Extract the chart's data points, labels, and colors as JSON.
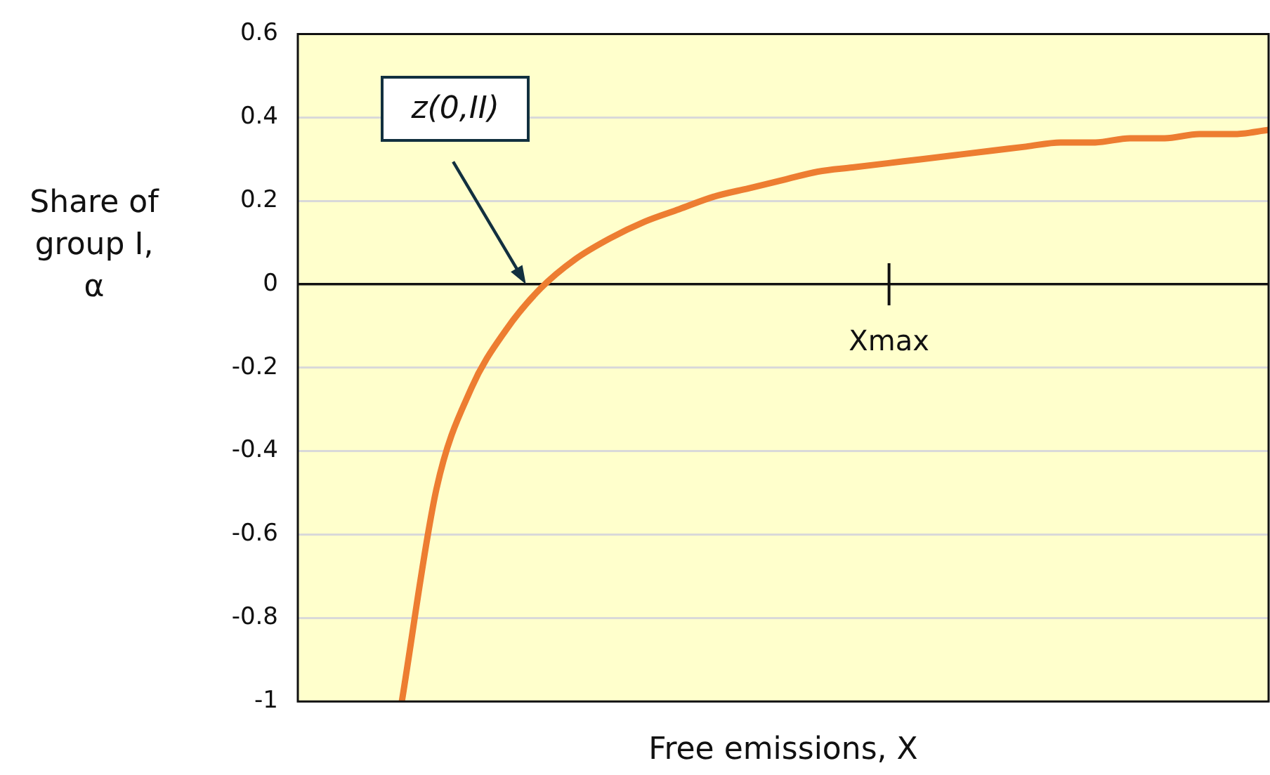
{
  "chart_data": {
    "type": "line",
    "xlabel": "Free emissions, X",
    "ylabel": "Share of group I, α",
    "categories": [
      null,
      null,
      null,
      null,
      null,
      null,
      null,
      null,
      null,
      null,
      null,
      null,
      null,
      null,
      null,
      null,
      null,
      null,
      null,
      null,
      null,
      null,
      null,
      null,
      null,
      null,
      null,
      null,
      null
    ],
    "series": [
      {
        "color": "#ed7d31",
        "values": [
          null,
          null,
          null,
          -1,
          -0.49,
          -0.25,
          -0.11,
          -0.01,
          0.06,
          0.11,
          0.15,
          0.18,
          0.21,
          0.23,
          0.25,
          0.27,
          0.28,
          0.29,
          0.3,
          0.31,
          0.32,
          0.33,
          0.34,
          0.34,
          0.35,
          0.35,
          0.36,
          0.36,
          0.37
        ]
      }
    ],
    "ylim": [
      -1,
      0.6
    ],
    "yticks": [
      -1,
      -0.8,
      -0.6,
      -0.4,
      -0.2,
      0,
      0.2,
      0.4,
      0.6
    ],
    "grid": "y",
    "legend": false,
    "marker": "none",
    "line_style": "solid",
    "annotations": [
      "z(0,II)",
      "Xmax"
    ]
  }
}
